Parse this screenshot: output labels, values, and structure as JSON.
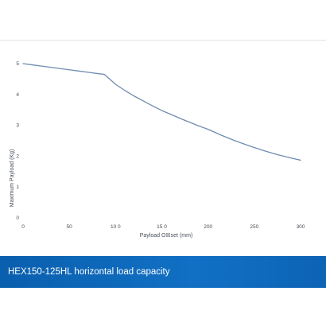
{
  "caption": "HEX150-125HL horizontal load capacity",
  "colors": {
    "line": "#6f8cb0",
    "caption_bg": "#0d66b8",
    "axis_text": "#444c56"
  },
  "chart_data": {
    "type": "line",
    "title": "",
    "xlabel": "Payload O☒set (mm)",
    "ylabel": "Maximum Payload (Kg)",
    "xlim": [
      0,
      300
    ],
    "ylim": [
      0,
      5
    ],
    "xticks": [
      0,
      50,
      100,
      150,
      200,
      250,
      300
    ],
    "xtick_labels": [
      "0",
      "50",
      "10 0",
      "15 0",
      "200",
      "250",
      "300"
    ],
    "yticks": [
      0,
      1,
      2,
      3,
      4,
      5
    ],
    "ytick_labels": [
      "0",
      "1",
      "2",
      "3",
      "4",
      "5"
    ],
    "grid": false,
    "series": [
      {
        "x": [
          0,
          10,
          20,
          30,
          40,
          50,
          60,
          70,
          80,
          88,
          100,
          110,
          120,
          130,
          140,
          150,
          160,
          175,
          190,
          200,
          215,
          230,
          245,
          260,
          275,
          290,
          300
        ],
        "values": [
          5.0,
          4.96,
          4.92,
          4.88,
          4.84,
          4.8,
          4.76,
          4.72,
          4.68,
          4.65,
          4.33,
          4.13,
          3.95,
          3.79,
          3.63,
          3.48,
          3.35,
          3.16,
          2.98,
          2.87,
          2.67,
          2.49,
          2.33,
          2.18,
          2.05,
          1.94,
          1.87
        ]
      }
    ]
  }
}
